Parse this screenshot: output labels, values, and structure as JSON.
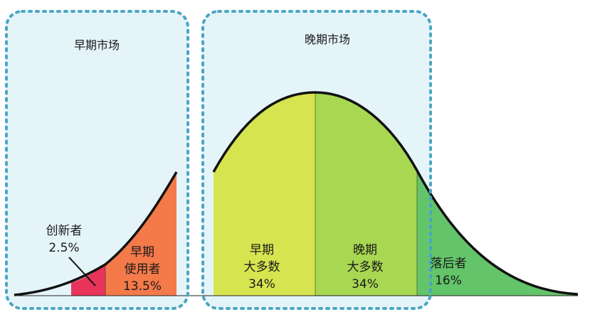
{
  "panels": {
    "early_market": {
      "title": "早期市场"
    },
    "late_market": {
      "title": "晚期市场"
    }
  },
  "segments": [
    {
      "key": "innovators",
      "name": "创新者",
      "share": "2.5%",
      "color": "#e8345a"
    },
    {
      "key": "early_adopters",
      "name_line1": "早期",
      "name_line2": "使用者",
      "share": "13.5%",
      "color": "#f47a4a"
    },
    {
      "key": "early_majority",
      "name_line1": "早期",
      "name_line2": "大多数",
      "share": "34%",
      "color": "#d6e54f"
    },
    {
      "key": "late_majority",
      "name_line1": "晚期",
      "name_line2": "大多数",
      "share": "34%",
      "color": "#a8d752"
    },
    {
      "key": "laggards",
      "name": "落后者",
      "share": "16%",
      "color": "#63c469"
    }
  ],
  "colors": {
    "panel_fill": "#e4f4f9",
    "panel_border": "#4aa6c3",
    "curve": "#111111"
  }
}
